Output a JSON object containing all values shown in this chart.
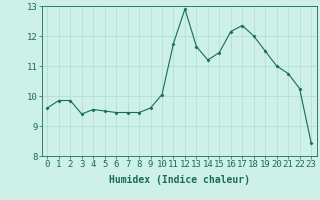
{
  "x": [
    0,
    1,
    2,
    3,
    4,
    5,
    6,
    7,
    8,
    9,
    10,
    11,
    12,
    13,
    14,
    15,
    16,
    17,
    18,
    19,
    20,
    21,
    22,
    23
  ],
  "y": [
    9.6,
    9.85,
    9.85,
    9.4,
    9.55,
    9.5,
    9.45,
    9.45,
    9.45,
    9.6,
    10.05,
    11.75,
    12.9,
    11.65,
    11.2,
    11.45,
    12.15,
    12.35,
    12.0,
    11.5,
    11.0,
    10.75,
    10.25,
    8.45
  ],
  "line_color": "#1a6b5a",
  "marker": "D",
  "marker_size": 1.5,
  "line_width": 0.8,
  "xlabel": "Humidex (Indice chaleur)",
  "xlim": [
    -0.5,
    23.5
  ],
  "ylim": [
    8,
    13
  ],
  "yticks": [
    8,
    9,
    10,
    11,
    12,
    13
  ],
  "xticks": [
    0,
    1,
    2,
    3,
    4,
    5,
    6,
    7,
    8,
    9,
    10,
    11,
    12,
    13,
    14,
    15,
    16,
    17,
    18,
    19,
    20,
    21,
    22,
    23
  ],
  "background_color": "#cdf0e8",
  "grid_color": "#b0ddd0",
  "tick_color": "#1a6b5a",
  "label_color": "#1a6b5a",
  "xlabel_fontsize": 7,
  "tick_fontsize": 6.5
}
